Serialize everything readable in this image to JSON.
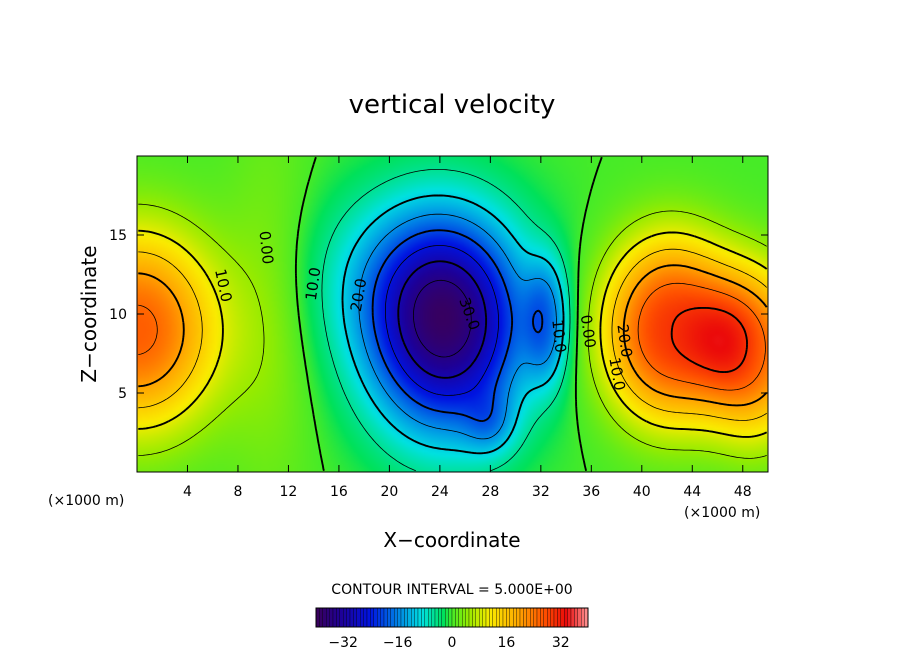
{
  "chart_data": {
    "type": "heatmap",
    "title": "vertical velocity",
    "xlabel": "X−coordinate",
    "ylabel": "Z−coordinate",
    "x_unit_left": "(×1000 m)",
    "x_unit_right": "(×1000 m)",
    "xlim": [
      0,
      50
    ],
    "ylim": [
      0,
      20
    ],
    "x_ticks": [
      4,
      8,
      12,
      16,
      20,
      24,
      28,
      32,
      36,
      40,
      44,
      48
    ],
    "x_tick_labels": [
      "4",
      "8",
      "12",
      "16",
      "20",
      "24",
      "28",
      "32",
      "36",
      "40",
      "44",
      "48"
    ],
    "y_ticks": [
      5,
      10,
      15
    ],
    "y_tick_labels": [
      "5",
      "10",
      "15"
    ],
    "contour_interval_text": "CONTOUR INTERVAL = 5.000E+00",
    "contour_interval": 5.0,
    "colorbar": {
      "range": [
        -40,
        40
      ],
      "ticks": [
        -32,
        -16,
        0,
        16,
        32
      ],
      "tick_labels": [
        "−32",
        "−16",
        "0",
        "16",
        "32"
      ]
    },
    "contour_labels": [
      {
        "text": "10.0",
        "x": 6.8,
        "y": 11.8,
        "rotation": 78
      },
      {
        "text": "0.00",
        "x": 10.2,
        "y": 14.2,
        "rotation": 84
      },
      {
        "text": "10.0",
        "x": 14.0,
        "y": 11.9,
        "rotation": -82
      },
      {
        "text": "20.0",
        "x": 17.6,
        "y": 11.2,
        "rotation": -80
      },
      {
        "text": "30.0",
        "x": 26.3,
        "y": 10.0,
        "rotation": 70
      },
      {
        "text": "10.0",
        "x": 33.4,
        "y": 8.6,
        "rotation": 84
      },
      {
        "text": "0.00",
        "x": 35.7,
        "y": 8.9,
        "rotation": 82
      },
      {
        "text": "20.0",
        "x": 38.6,
        "y": 8.3,
        "rotation": 82
      },
      {
        "text": "10.0",
        "x": 38.0,
        "y": 6.2,
        "rotation": 80
      }
    ],
    "field_features": [
      {
        "name": "updraft-left",
        "x": 0,
        "z": 9,
        "peak": 26
      },
      {
        "name": "downdraft-center",
        "x": 24.5,
        "z": 9,
        "peak": -36
      },
      {
        "name": "downdraft-right-lobe",
        "x": 32.5,
        "z": 9.5,
        "peak": -12
      },
      {
        "name": "updraft-right",
        "x": 42.5,
        "z": 9,
        "peak": 29
      },
      {
        "name": "updraft-right-edge",
        "x": 49,
        "z": 7.5,
        "peak": 24
      }
    ]
  }
}
